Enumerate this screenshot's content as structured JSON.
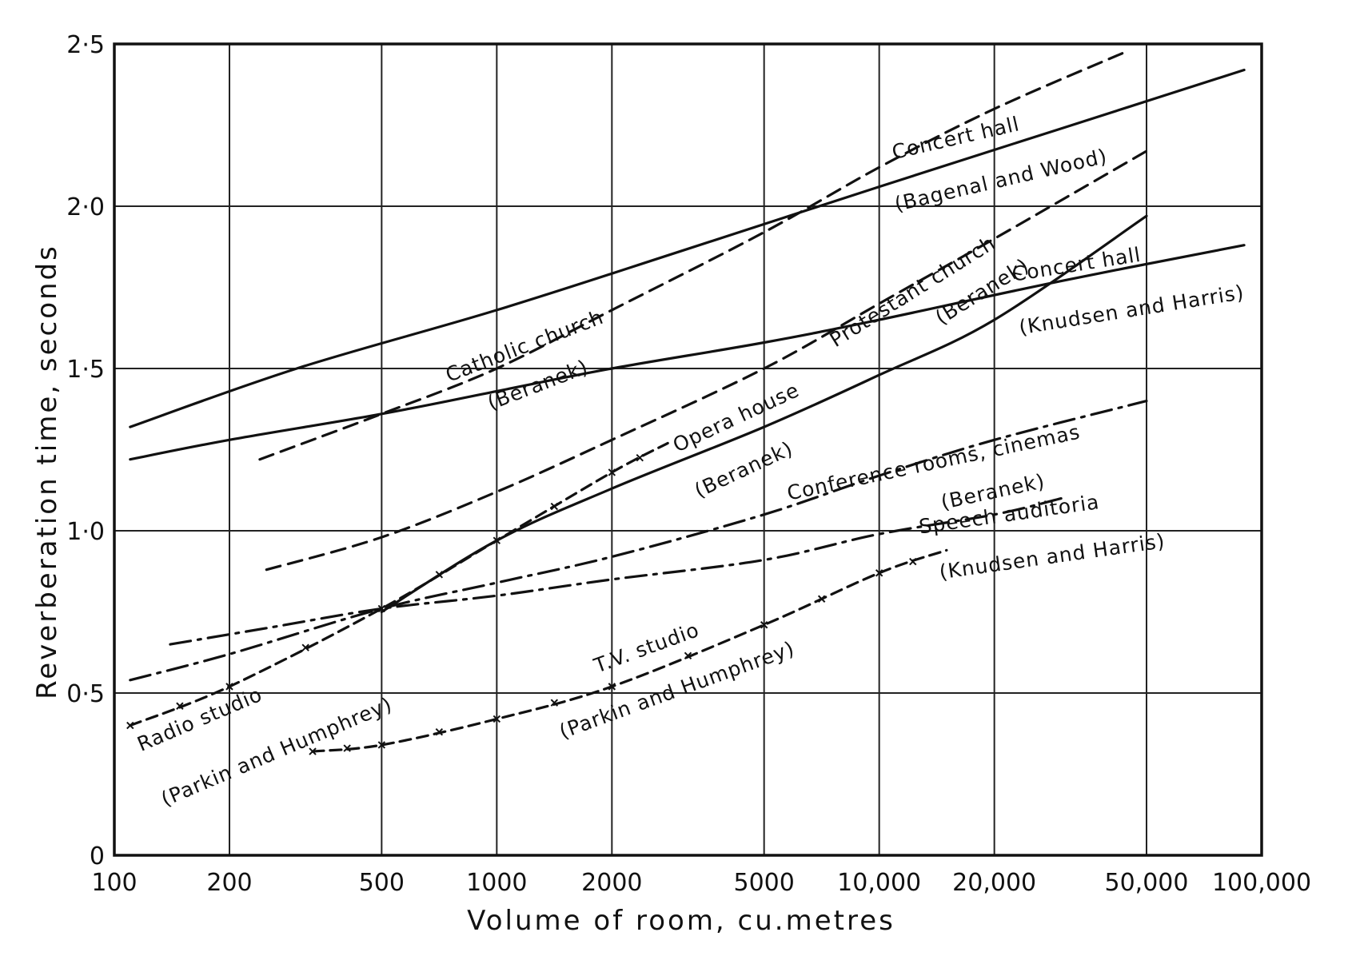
{
  "chart_data": {
    "type": "line",
    "xlabel": "Volume of room, cu.metres",
    "ylabel": "Reverberation time, seconds",
    "x_scale": "log",
    "xlim": [
      100,
      100000
    ],
    "ylim": [
      0,
      2.5
    ],
    "grid": true,
    "x_ticks": [
      {
        "value": 100,
        "label": "100"
      },
      {
        "value": 200,
        "label": "200"
      },
      {
        "value": 500,
        "label": "500"
      },
      {
        "value": 1000,
        "label": "1000"
      },
      {
        "value": 2000,
        "label": "2000"
      },
      {
        "value": 5000,
        "label": "5000"
      },
      {
        "value": 10000,
        "label": "10,000"
      },
      {
        "value": 20000,
        "label": "20,000"
      },
      {
        "value": 50000,
        "label": "50,000"
      },
      {
        "value": 100000,
        "label": "100,000"
      }
    ],
    "y_ticks": [
      {
        "value": 0,
        "label": "0"
      },
      {
        "value": 0.5,
        "label": "0·5"
      },
      {
        "value": 1.0,
        "label": "1·0"
      },
      {
        "value": 1.5,
        "label": "1·5"
      },
      {
        "value": 2.0,
        "label": "2·0"
      },
      {
        "value": 2.5,
        "label": "2·5"
      }
    ],
    "series": [
      {
        "style": "solid",
        "x": [
          110,
          300,
          1000,
          3000,
          10000,
          30000,
          90000
        ],
        "y": [
          1.32,
          1.5,
          1.68,
          1.86,
          2.06,
          2.24,
          2.42
        ]
      },
      {
        "style": "solid",
        "x": [
          110,
          200,
          500,
          1000,
          2000,
          5000,
          10000,
          30000,
          90000
        ],
        "y": [
          1.22,
          1.28,
          1.36,
          1.43,
          1.5,
          1.58,
          1.65,
          1.77,
          1.88
        ]
      },
      {
        "style": "dashed",
        "x": [
          240,
          500,
          1000,
          2000,
          5000,
          10000,
          20000,
          45000
        ],
        "y": [
          1.22,
          1.36,
          1.5,
          1.68,
          1.92,
          2.12,
          2.3,
          2.48
        ]
      },
      {
        "style": "dashed",
        "x": [
          250,
          500,
          1000,
          2000,
          5000,
          10000,
          20000,
          50000
        ],
        "y": [
          0.88,
          0.98,
          1.12,
          1.28,
          1.5,
          1.7,
          1.9,
          2.17
        ]
      },
      {
        "style": "solid",
        "x": [
          500,
          1000,
          2000,
          5000,
          10000,
          20000,
          50000
        ],
        "y": [
          0.75,
          0.97,
          1.13,
          1.32,
          1.48,
          1.65,
          1.97
        ]
      },
      {
        "style": "dash-x",
        "x": [
          110,
          200,
          500,
          1000,
          2000,
          2800
        ],
        "y": [
          0.4,
          0.52,
          0.76,
          0.97,
          1.18,
          1.27
        ]
      },
      {
        "style": "dash-dot",
        "x": [
          110,
          200,
          500,
          1000,
          2000,
          5000,
          10000,
          20000,
          50000
        ],
        "y": [
          0.54,
          0.62,
          0.76,
          0.84,
          0.92,
          1.05,
          1.17,
          1.28,
          1.4
        ]
      },
      {
        "style": "dash-dot",
        "x": [
          140,
          250,
          500,
          1000,
          2000,
          5000,
          10000,
          20000,
          30000
        ],
        "y": [
          0.65,
          0.7,
          0.76,
          0.8,
          0.85,
          0.91,
          0.99,
          1.05,
          1.1
        ]
      },
      {
        "style": "dash-x",
        "x": [
          330,
          500,
          1000,
          2000,
          5000,
          10000,
          15000
        ],
        "y": [
          0.32,
          0.34,
          0.42,
          0.52,
          0.71,
          0.87,
          0.94
        ]
      }
    ],
    "annotations": [
      {
        "text": "Catholic church",
        "x": 1200,
        "y": 1.55,
        "angle": -21
      },
      {
        "text": "(Beranek)",
        "x": 1300,
        "y": 1.43,
        "angle": -21
      },
      {
        "text": "Concert hall",
        "x": 16000,
        "y": 2.19,
        "angle": -13
      },
      {
        "text": "(Bagenal and Wood)",
        "x": 21000,
        "y": 2.06,
        "angle": -13
      },
      {
        "text": "Protestant church",
        "x": 12500,
        "y": 1.72,
        "angle": -32
      },
      {
        "text": "(Beranek)",
        "x": 19000,
        "y": 1.72,
        "angle": -32
      },
      {
        "text": "Concert hall",
        "x": 33000,
        "y": 1.8,
        "angle": -9
      },
      {
        "text": "(Knudsen and Harris)",
        "x": 46000,
        "y": 1.66,
        "angle": -9
      },
      {
        "text": "Opera house",
        "x": 4300,
        "y": 1.33,
        "angle": -25
      },
      {
        "text": "(Beranek)",
        "x": 4500,
        "y": 1.17,
        "angle": -25
      },
      {
        "text": "Conference rooms, cinemas",
        "x": 14000,
        "y": 1.19,
        "angle": -12
      },
      {
        "text": "(Beranek)",
        "x": 20000,
        "y": 1.1,
        "angle": -12
      },
      {
        "text": "Speech auditoria",
        "x": 22000,
        "y": 1.03,
        "angle": -8
      },
      {
        "text": "(Knudsen and Harris)",
        "x": 28500,
        "y": 0.9,
        "angle": -8
      },
      {
        "text": "Radio studio",
        "x": 170,
        "y": 0.4,
        "angle": -23
      },
      {
        "text": "(Parkin and Humphrey)",
        "x": 270,
        "y": 0.3,
        "angle": -23
      },
      {
        "text": "T.V. studio",
        "x": 2500,
        "y": 0.62,
        "angle": -20
      },
      {
        "text": "(Parkin and Humphrey)",
        "x": 3000,
        "y": 0.49,
        "angle": -20
      }
    ],
    "colors": {
      "ink": "#111111",
      "background": "#ffffff"
    }
  }
}
